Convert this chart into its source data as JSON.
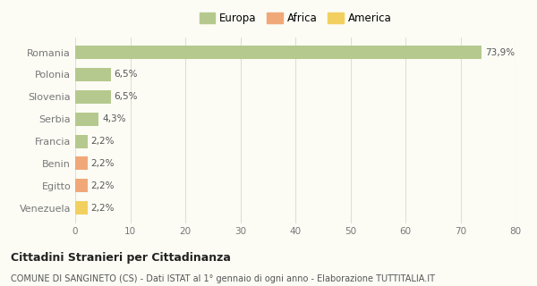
{
  "categories": [
    "Romania",
    "Polonia",
    "Slovenia",
    "Serbia",
    "Francia",
    "Benin",
    "Egitto",
    "Venezuela"
  ],
  "values": [
    73.9,
    6.5,
    6.5,
    4.3,
    2.2,
    2.2,
    2.2,
    2.2
  ],
  "labels": [
    "73,9%",
    "6,5%",
    "6,5%",
    "4,3%",
    "2,2%",
    "2,2%",
    "2,2%",
    "2,2%"
  ],
  "bar_colors": [
    "#b5c98e",
    "#b5c98e",
    "#b5c98e",
    "#b5c98e",
    "#b5c98e",
    "#f0a878",
    "#f0a878",
    "#f2d060"
  ],
  "legend_labels": [
    "Europa",
    "Africa",
    "America"
  ],
  "legend_colors": [
    "#b5c98e",
    "#f0a878",
    "#f2d060"
  ],
  "xlim": [
    0,
    80
  ],
  "xticks": [
    0,
    10,
    20,
    30,
    40,
    50,
    60,
    70,
    80
  ],
  "title": "Cittadini Stranieri per Cittadinanza",
  "subtitle": "COMUNE DI SANGINETO (CS) - Dati ISTAT al 1° gennaio di ogni anno - Elaborazione TUTTITALIA.IT",
  "bg_color": "#fcfcf5",
  "grid_color": "#e0e0d0",
  "label_color": "#777777",
  "bar_label_color": "#555555"
}
